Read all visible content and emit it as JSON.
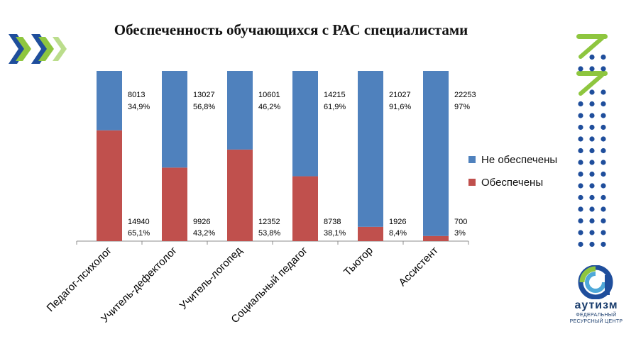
{
  "title": "Обеспеченность обучающихся с РАС специалистами",
  "colors": {
    "not_provided": "#4f81bd",
    "provided": "#c0504d",
    "brand_blue": "#1f4e9c",
    "brand_green": "#8ec63f"
  },
  "legend": {
    "not_provided": "Не обеспечены",
    "provided": "Обеспечены"
  },
  "logo": {
    "word": "аутизм",
    "subtitle_line1": "ФЕДЕРАЛЬНЫЙ",
    "subtitle_line2": "РЕСУРСНЫЙ ЦЕНТР",
    "left_icon": "chevrons-logo-icon",
    "right_icon": "dotted-arrow-logo-icon",
    "emblem_icon": "autism-emblem-icon"
  },
  "chart_data": {
    "type": "bar",
    "stacked": true,
    "percent_stacked": true,
    "categories": [
      "Педагог-психолог",
      "Учитель-дефектолог",
      "Учитель-логопед",
      "Социальный педагог",
      "Тьютор",
      "Ассистент"
    ],
    "series": [
      {
        "name": "Обеспечены",
        "color": "#c0504d",
        "values": [
          65.1,
          43.2,
          53.8,
          38.1,
          8.4,
          3
        ],
        "counts": [
          "14940",
          "9926",
          "12352",
          "8738",
          "1926",
          "700"
        ],
        "percent_labels": [
          "65,1%",
          "43,2%",
          "53,8%",
          "38,1%",
          "8,4%",
          "3%"
        ]
      },
      {
        "name": "Не обеспечены",
        "color": "#4f81bd",
        "values": [
          34.9,
          56.8,
          46.2,
          61.9,
          91.6,
          97
        ],
        "counts": [
          "8013",
          "13027",
          "10601",
          "14215",
          "21027",
          "22253"
        ],
        "percent_labels": [
          "34,9%",
          "56,8%",
          "46,2%",
          "61,9%",
          "91,6%",
          "97%"
        ]
      }
    ],
    "ylim": [
      0,
      100
    ],
    "grid": false,
    "legend_position": "right"
  }
}
